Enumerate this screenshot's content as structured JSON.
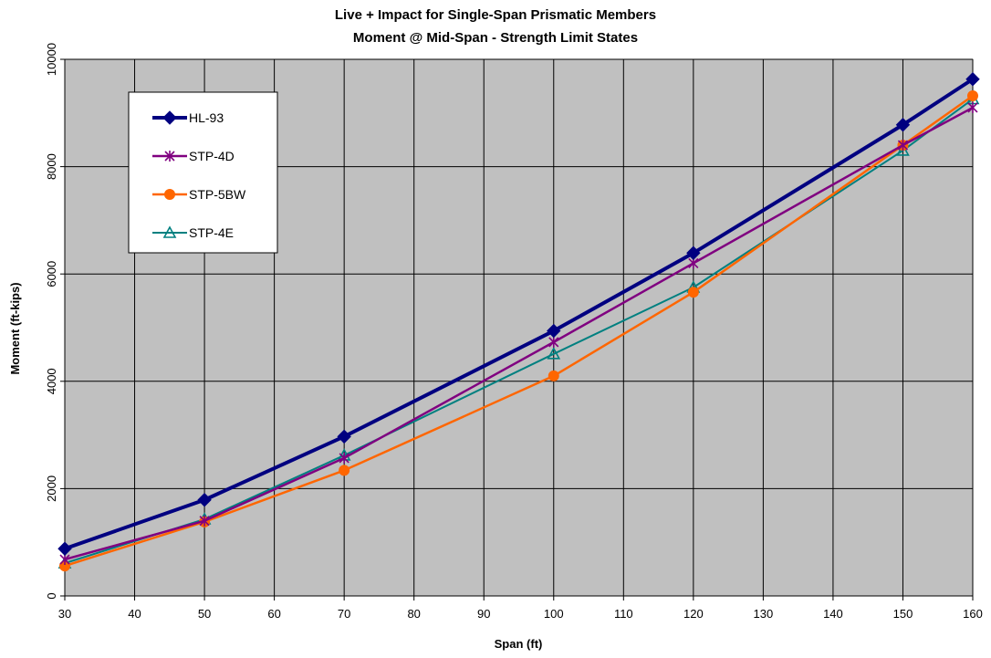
{
  "chart_data": {
    "type": "line",
    "title": "Live + Impact for Single-Span Prismatic Members",
    "subtitle": "Moment @ Mid-Span - Strength Limit States",
    "xlabel": "Span (ft)",
    "ylabel": "Moment (ft-kips)",
    "xlim": [
      30,
      160
    ],
    "ylim": [
      0,
      10000
    ],
    "x_ticks": [
      "30",
      "40",
      "50",
      "60",
      "70",
      "80",
      "90",
      "100",
      "110",
      "120",
      "130",
      "140",
      "150",
      "160"
    ],
    "y_ticks": [
      "0",
      "2000",
      "4000",
      "6000",
      "8000",
      "10000"
    ],
    "grid": true,
    "legend_position": "top-left",
    "plot_background": "#c0c0c0",
    "series": [
      {
        "name": "HL-93",
        "color": "#000080",
        "marker": "diamond",
        "x": [
          30,
          50,
          70,
          100,
          120,
          150,
          160
        ],
        "values": [
          880,
          1790,
          2970,
          4940,
          6390,
          8780,
          9630
        ]
      },
      {
        "name": "STP-4D",
        "color": "#800080",
        "marker": "star",
        "x": [
          30,
          50,
          70,
          100,
          120,
          150,
          160
        ],
        "values": [
          680,
          1400,
          2570,
          4730,
          6200,
          8400,
          9100
        ]
      },
      {
        "name": "STP-5BW",
        "color": "#ff6600",
        "marker": "circle",
        "x": [
          30,
          50,
          70,
          100,
          120,
          150,
          160
        ],
        "values": [
          560,
          1380,
          2340,
          4100,
          5660,
          8400,
          9320
        ]
      },
      {
        "name": "STP-4E",
        "color": "#008080",
        "marker": "triangle",
        "x": [
          30,
          50,
          70,
          100,
          120,
          150,
          160
        ],
        "values": [
          610,
          1430,
          2620,
          4510,
          5750,
          8300,
          9260
        ]
      }
    ]
  }
}
